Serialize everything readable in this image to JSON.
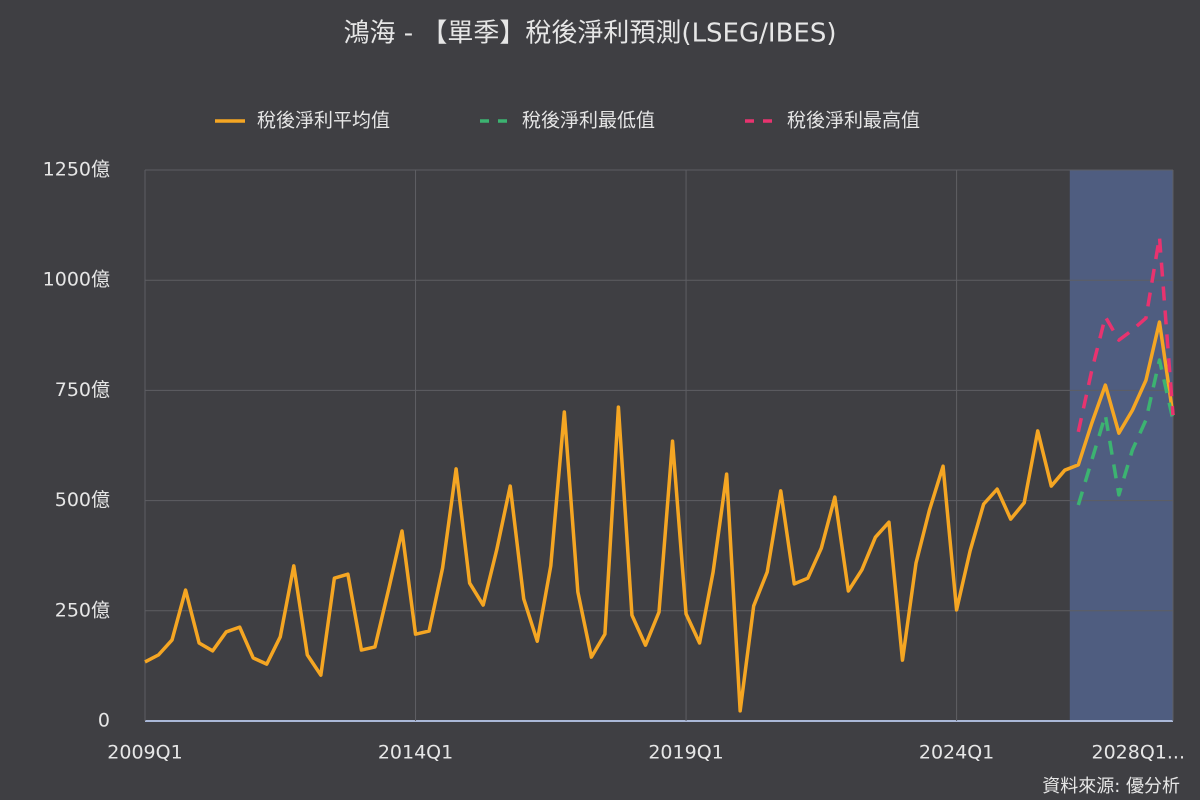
{
  "chart_data": {
    "type": "line",
    "title": "鴻海 - 【單季】稅後淨利預測(LSEG/IBES)",
    "source": "資料來源: 優分析",
    "categories": [
      "2009Q1",
      null,
      null,
      null,
      null,
      null,
      null,
      null,
      null,
      null,
      null,
      null,
      null,
      null,
      null,
      null,
      null,
      null,
      null,
      null,
      "2014Q1",
      null,
      null,
      null,
      null,
      null,
      null,
      null,
      null,
      null,
      null,
      null,
      null,
      null,
      null,
      null,
      null,
      null,
      null,
      null,
      "2019Q1",
      null,
      null,
      null,
      null,
      null,
      null,
      null,
      null,
      null,
      null,
      null,
      null,
      null,
      null,
      null,
      null,
      null,
      null,
      null,
      "2024Q1",
      null,
      null,
      null,
      null,
      null,
      null,
      null,
      null,
      null,
      null,
      null,
      null,
      null,
      null,
      null,
      "2028Q1..."
    ],
    "series": [
      {
        "name": "稅後淨利平均值",
        "color": "#f5a623",
        "dash": false,
        "values": [
          134,
          150,
          184,
          297,
          177,
          159,
          202,
          213,
          143,
          129,
          191,
          352,
          150,
          104,
          324,
          333,
          161,
          168,
          297,
          431,
          197,
          204,
          347,
          572,
          313,
          263,
          388,
          533,
          277,
          181,
          352,
          701,
          293,
          145,
          197,
          712,
          240,
          172,
          247,
          635,
          243,
          177,
          338,
          560,
          23,
          261,
          338,
          522,
          311,
          324,
          392,
          508,
          295,
          343,
          417,
          451,
          138,
          358,
          479,
          578,
          252,
          386,
          492,
          526,
          458,
          495,
          658,
          533,
          569,
          581,
          676,
          762,
          653,
          705,
          773,
          905,
          694
        ]
      },
      {
        "name": "稅後淨利最低值",
        "color": "#3cb371",
        "dash": true,
        "values": [
          null,
          null,
          null,
          null,
          null,
          null,
          null,
          null,
          null,
          null,
          null,
          null,
          null,
          null,
          null,
          null,
          null,
          null,
          null,
          null,
          null,
          null,
          null,
          null,
          null,
          null,
          null,
          null,
          null,
          null,
          null,
          null,
          null,
          null,
          null,
          null,
          null,
          null,
          null,
          null,
          null,
          null,
          null,
          null,
          null,
          null,
          null,
          null,
          null,
          null,
          null,
          null,
          null,
          null,
          null,
          null,
          null,
          null,
          null,
          null,
          null,
          null,
          null,
          null,
          null,
          null,
          null,
          null,
          null,
          490,
          592,
          694,
          513,
          615,
          683,
          819,
          683
        ]
      },
      {
        "name": "稅後淨利最高值",
        "color": "#e8336f",
        "dash": true,
        "values": [
          null,
          null,
          null,
          null,
          null,
          null,
          null,
          null,
          null,
          null,
          null,
          null,
          null,
          null,
          null,
          null,
          null,
          null,
          null,
          null,
          null,
          null,
          null,
          null,
          null,
          null,
          null,
          null,
          null,
          null,
          null,
          null,
          null,
          null,
          null,
          null,
          null,
          null,
          null,
          null,
          null,
          null,
          null,
          null,
          null,
          null,
          null,
          null,
          null,
          null,
          null,
          null,
          null,
          null,
          null,
          null,
          null,
          null,
          null,
          null,
          null,
          null,
          null,
          null,
          null,
          null,
          null,
          null,
          null,
          656,
          796,
          917,
          864,
          887,
          914,
          1098,
          694
        ]
      }
    ],
    "ylim": [
      0,
      1250
    ],
    "yticks": [
      0,
      {
        "value": 250,
        "label": "250億"
      },
      {
        "value": 500,
        "label": "500億"
      },
      {
        "value": 750,
        "label": "750億"
      },
      {
        "value": 1000,
        "label": "1000億"
      },
      {
        "value": 1250,
        "label": "1250億"
      }
    ],
    "shaded_range": [
      68,
      76
    ],
    "grid": true
  }
}
